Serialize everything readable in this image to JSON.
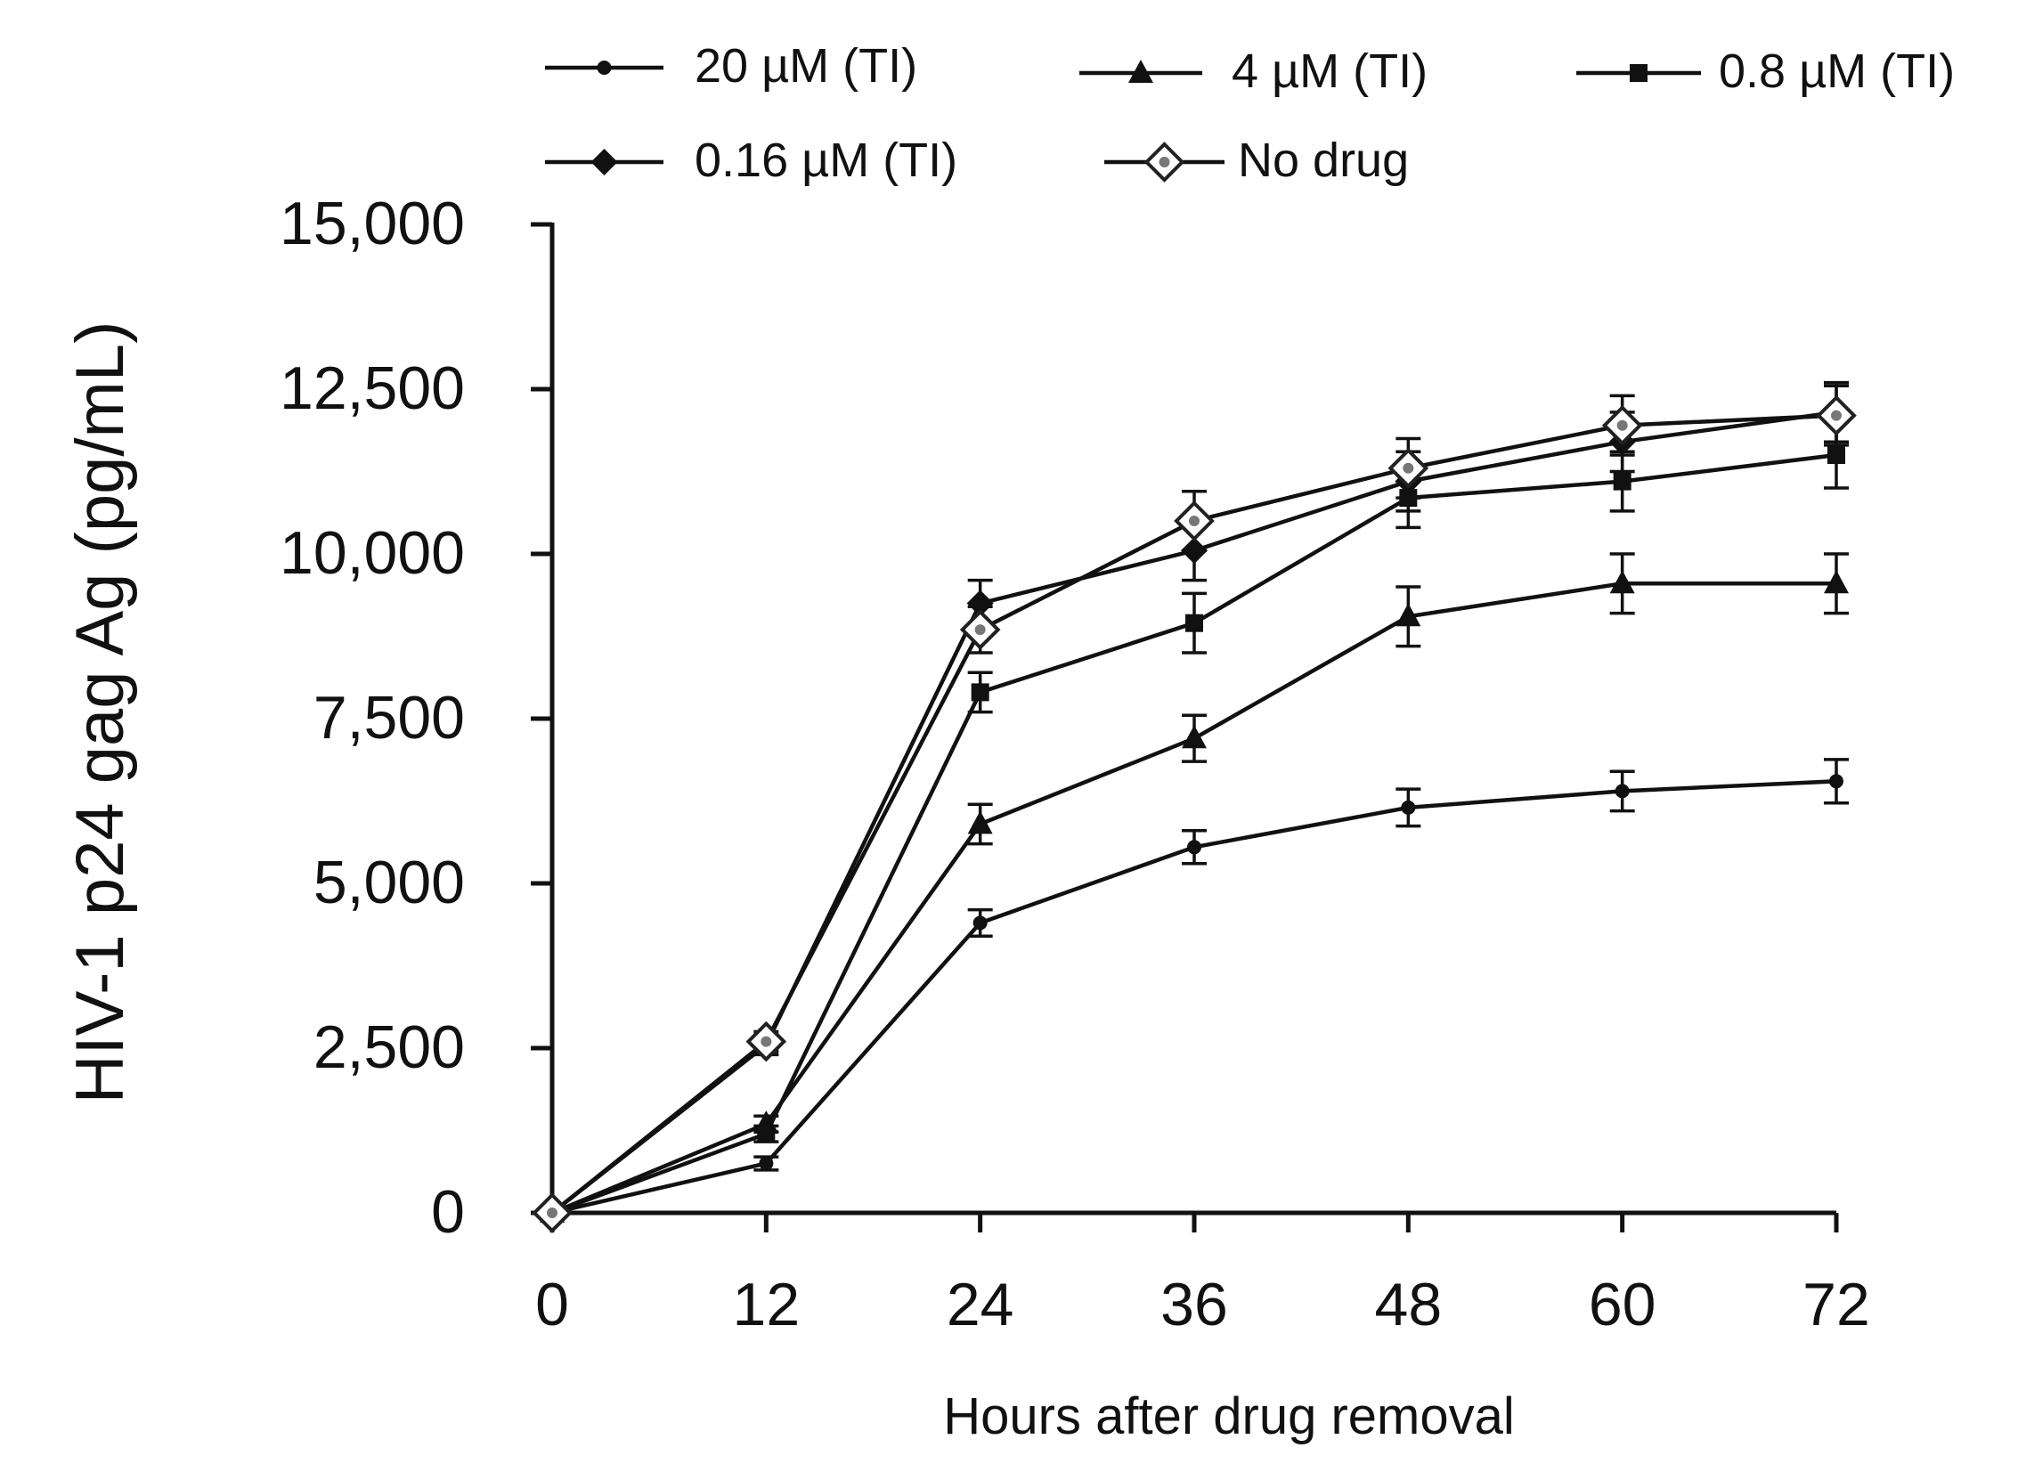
{
  "chart_data": {
    "type": "line",
    "title": "",
    "xlabel": "Hours after drug removal",
    "ylabel": "HIV-1 p24 gag Ag (pg/mL)",
    "x": [
      0,
      12,
      24,
      36,
      48,
      60,
      72
    ],
    "x_tick_labels": [
      "0",
      "12",
      "24",
      "36",
      "48",
      "60",
      "72"
    ],
    "y_ticks": [
      0,
      2500,
      5000,
      7500,
      10000,
      12500,
      15000
    ],
    "y_tick_labels": [
      "0",
      "2,500",
      "5,000",
      "7,500",
      "10,000",
      "12,500",
      "15,000"
    ],
    "xlim": [
      0,
      72
    ],
    "ylim": [
      0,
      15000
    ],
    "grid": false,
    "legend_position": "top",
    "series": [
      {
        "name": "20 µM  (TI)",
        "marker": "circle-small",
        "values": [
          0,
          750,
          4400,
          5550,
          6150,
          6400,
          6550
        ],
        "errors": [
          0,
          100,
          200,
          250,
          280,
          300,
          330
        ]
      },
      {
        "name": "4 µM (TI)",
        "marker": "triangle",
        "values": [
          0,
          1350,
          5900,
          7200,
          9050,
          9550,
          9550
        ],
        "errors": [
          0,
          120,
          300,
          350,
          450,
          450,
          450
        ]
      },
      {
        "name": "0.8 µM (TI)",
        "marker": "square",
        "values": [
          0,
          1200,
          7900,
          8950,
          10850,
          11100,
          11500
        ],
        "errors": [
          0,
          120,
          300,
          450,
          450,
          450,
          500
        ]
      },
      {
        "name": "0.16 µM  (TI)",
        "marker": "diamond",
        "values": [
          0,
          2550,
          9250,
          10050,
          11100,
          11700,
          12150
        ],
        "errors": [
          0,
          150,
          350,
          450,
          450,
          450,
          450
        ]
      },
      {
        "name": "No drug",
        "marker": "diamond-open",
        "values": [
          0,
          2600,
          8850,
          10500,
          11300,
          11950,
          12100
        ],
        "errors": [
          0,
          150,
          350,
          450,
          450,
          450,
          450
        ]
      }
    ]
  }
}
